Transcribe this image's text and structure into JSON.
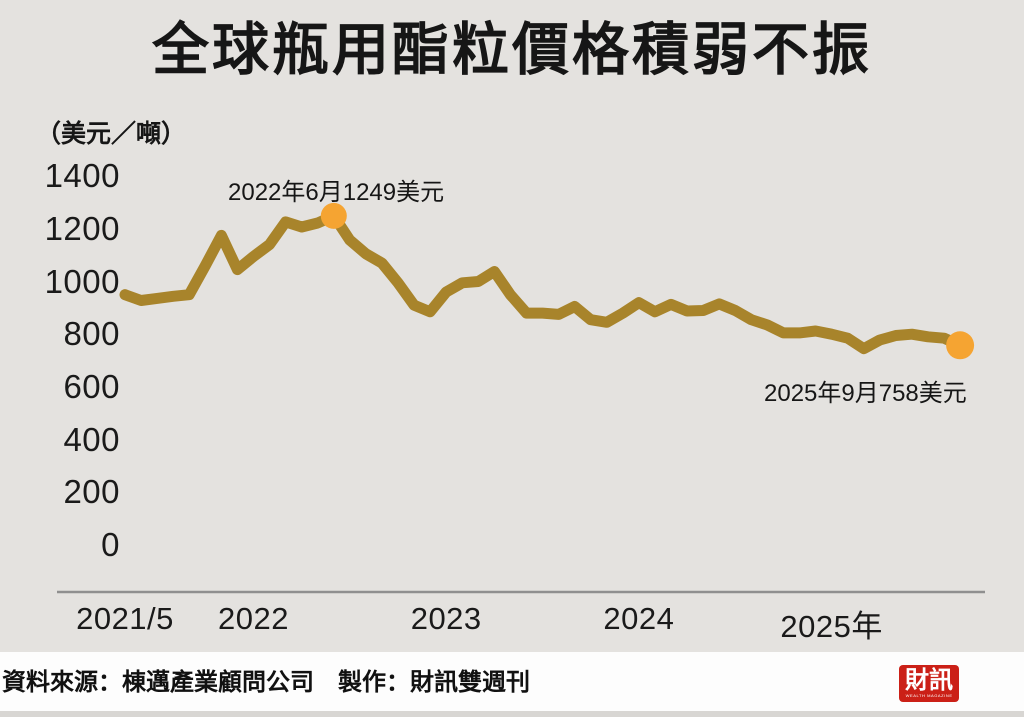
{
  "title": "全球瓶用酯粒價格積弱不振",
  "chart_data": {
    "type": "line",
    "title": "全球瓶用酯粒價格積弱不振",
    "unit_label": "（美元／噸）",
    "ylabel": "美元／噸",
    "ylim": [
      0,
      1400
    ],
    "grid": false,
    "legend": "none",
    "x_start": "2021/5",
    "x_end": "2025/9",
    "x_frequency": "monthly",
    "yticks": [
      1400,
      1200,
      1000,
      800,
      600,
      400,
      200,
      0
    ],
    "xticks": [
      {
        "label": "2021/5",
        "month_index": 0
      },
      {
        "label": "2022",
        "month_index": 8
      },
      {
        "label": "2023",
        "month_index": 20
      },
      {
        "label": "2024",
        "month_index": 32
      },
      {
        "label": "2025年",
        "month_index": 44
      }
    ],
    "series": [
      {
        "name": "全球瓶用酯粒價格",
        "values": [
          950,
          928,
          936,
          944,
          950,
          1060,
          1175,
          1045,
          1095,
          1140,
          1226,
          1207,
          1222,
          1249,
          1157,
          1105,
          1070,
          995,
          910,
          885,
          960,
          995,
          1000,
          1038,
          950,
          880,
          880,
          875,
          905,
          855,
          845,
          880,
          920,
          885,
          913,
          888,
          890,
          915,
          890,
          855,
          835,
          805,
          805,
          812,
          800,
          785,
          745,
          778,
          795,
          800,
          790,
          785,
          758
        ]
      }
    ],
    "annotations": [
      {
        "text": "2022年6月1249美元",
        "month_index": 13,
        "value": 1249
      },
      {
        "text": "2025年9月758美元",
        "month_index": 52,
        "value": 758
      }
    ],
    "line_color": "#a8842b",
    "dot_color": "#f5a432",
    "axis_color": "#8f8f8f",
    "background_color": "#e4e2df"
  },
  "footer": {
    "source": "資料來源：棟邁產業顧問公司　製作：財訊雙週刊",
    "logo_text": "財訊",
    "logo_subtext": "WEALTH MAGAZINE"
  }
}
